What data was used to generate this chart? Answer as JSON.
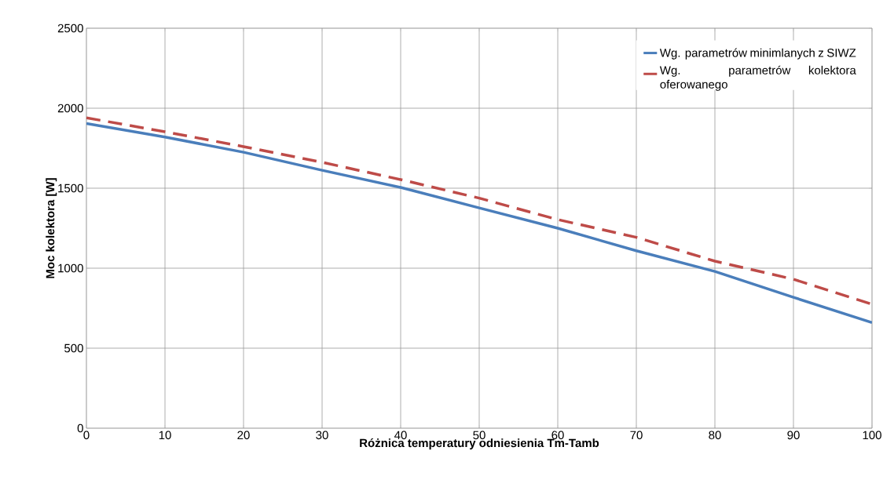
{
  "chart_data": {
    "type": "line",
    "xlabel": "Różnica temperatury odniesienia Tm-Tamb",
    "ylabel": "Moc kolektora [W]",
    "x": [
      0,
      10,
      20,
      30,
      40,
      50,
      60,
      70,
      80,
      90,
      100
    ],
    "series": [
      {
        "name": "Wg. parametrów minimlanych z SIWZ",
        "color": "#4a7ebb",
        "line_style": "solid",
        "values": [
          1905,
          1820,
          1725,
          1612,
          1505,
          1377,
          1250,
          1109,
          980,
          818,
          660
        ]
      },
      {
        "name": "Wg. parametrów kolektora oferowanego",
        "color": "#be4b48",
        "line_style": "dashed",
        "values": [
          1940,
          1853,
          1760,
          1662,
          1554,
          1438,
          1304,
          1193,
          1044,
          931,
          775
        ]
      }
    ],
    "xlim": [
      0,
      100
    ],
    "xticks": [
      0,
      10,
      20,
      30,
      40,
      50,
      60,
      70,
      80,
      90,
      100
    ],
    "ylim": [
      0,
      2500
    ],
    "yticks": [
      0,
      500,
      1000,
      1500,
      2000,
      2500
    ],
    "grid": true,
    "legend": "top right",
    "marker": "none"
  }
}
